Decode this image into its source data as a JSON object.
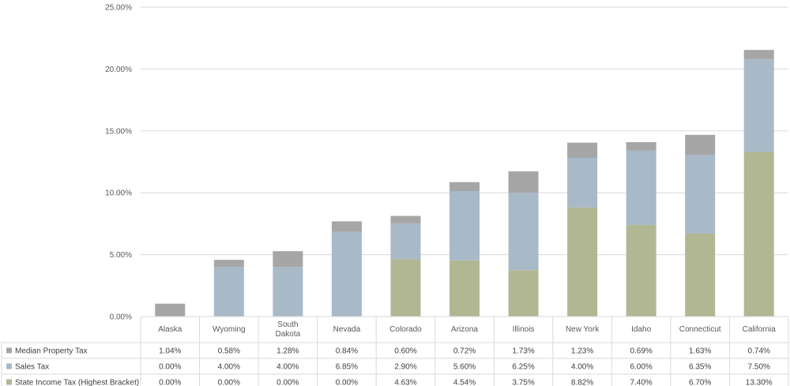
{
  "chart_data": {
    "type": "bar",
    "stacked": true,
    "categories": [
      "Alaska",
      "Wyoming",
      "South Dakota",
      "Nevada",
      "Colorado",
      "Arizona",
      "Illinois",
      "New York",
      "Idaho",
      "Connecticut",
      "California"
    ],
    "series": [
      {
        "name": "Median Property Tax",
        "color": "#a6a6a6",
        "values": [
          1.04,
          0.58,
          1.28,
          0.84,
          0.6,
          0.72,
          1.73,
          1.23,
          0.69,
          1.63,
          0.74
        ],
        "labels": [
          "1.04%",
          "0.58%",
          "1.28%",
          "0.84%",
          "0.60%",
          "0.72%",
          "1.73%",
          "1.23%",
          "0.69%",
          "1.63%",
          "0.74%"
        ]
      },
      {
        "name": "Sales Tax",
        "color": "#a8b9c8",
        "values": [
          0.0,
          4.0,
          4.0,
          6.85,
          2.9,
          5.6,
          6.25,
          4.0,
          6.0,
          6.35,
          7.5
        ],
        "labels": [
          "0.00%",
          "4.00%",
          "4.00%",
          "6.85%",
          "2.90%",
          "5.60%",
          "6.25%",
          "4.00%",
          "6.00%",
          "6.35%",
          "7.50%"
        ]
      },
      {
        "name": "State Income Tax (Highest Bracket)",
        "color": "#b2b793",
        "values": [
          0.0,
          0.0,
          0.0,
          0.0,
          4.63,
          4.54,
          3.75,
          8.82,
          7.4,
          6.7,
          13.3
        ],
        "labels": [
          "0.00%",
          "0.00%",
          "0.00%",
          "0.00%",
          "4.63%",
          "4.54%",
          "3.75%",
          "8.82%",
          "7.40%",
          "6.70%",
          "13.30%"
        ]
      }
    ],
    "stack_order_bottom_to_top": [
      "State Income Tax (Highest Bracket)",
      "Sales Tax",
      "Median Property Tax"
    ],
    "ylim": [
      0,
      25
    ],
    "yticks": [
      0,
      5,
      10,
      15,
      20,
      25
    ],
    "ytick_labels": [
      "0.00%",
      "5.00%",
      "10.00%",
      "15.00%",
      "20.00%",
      "25.00%"
    ],
    "grid": true,
    "legend": "data-table-left",
    "title": "",
    "xlabel": "",
    "ylabel": ""
  }
}
